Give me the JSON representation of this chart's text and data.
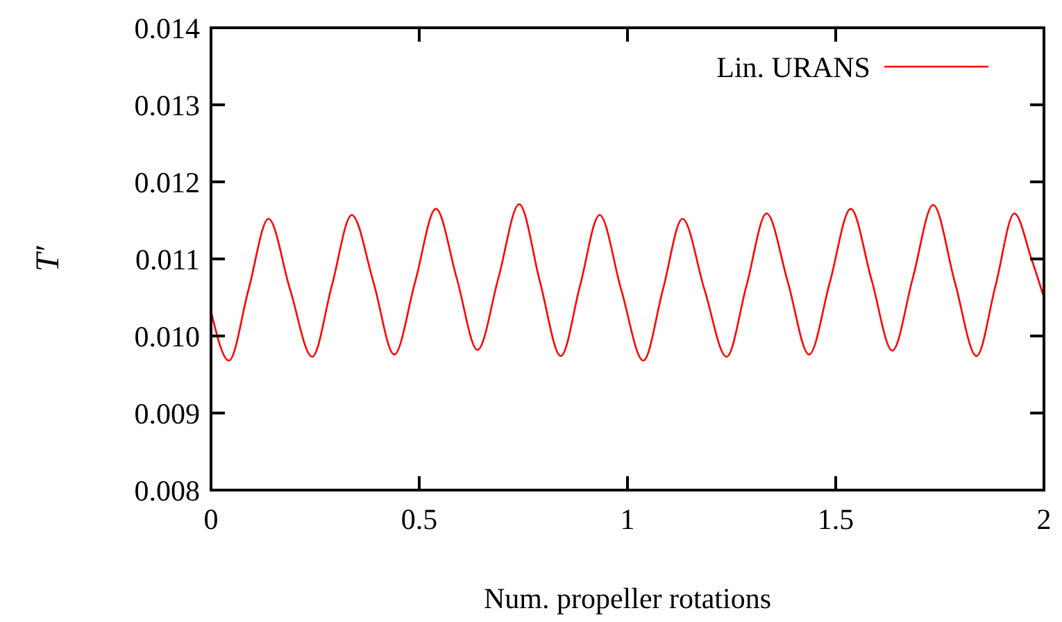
{
  "chart_data": {
    "type": "line",
    "xlabel": "Num. propeller rotations",
    "ylabel": "T′",
    "xlim": [
      0,
      2
    ],
    "xticks": [
      0,
      0.5,
      1,
      1.5,
      2
    ],
    "ylim": [
      0.008,
      0.014
    ],
    "yticks": [
      {
        "value": 0.008,
        "label": "0.008"
      },
      {
        "value": 0.009,
        "label": "0.009"
      },
      {
        "value": 0.01,
        "label": "0.010"
      },
      {
        "value": 0.011,
        "label": "0.011"
      },
      {
        "value": 0.012,
        "label": "0.012"
      },
      {
        "value": 0.013,
        "label": "0.013"
      },
      {
        "value": 0.014,
        "label": "0.014"
      }
    ],
    "grid": false,
    "legend": "top right",
    "marker": "none",
    "line_style": "solid",
    "series": [
      {
        "name": "Lin. URANS",
        "color": "#ff0000",
        "x": [
          0,
          0.043,
          0.09,
          0.138,
          0.19,
          0.243,
          0.29,
          0.338,
          0.39,
          0.44,
          0.49,
          0.54,
          0.59,
          0.64,
          0.69,
          0.74,
          0.79,
          0.84,
          0.886,
          0.933,
          0.985,
          1.038,
          1.085,
          1.132,
          1.185,
          1.238,
          1.286,
          1.334,
          1.385,
          1.436,
          1.486,
          1.536,
          1.586,
          1.636,
          1.685,
          1.734,
          1.786,
          1.838,
          1.884,
          1.929,
          1.97,
          2
        ],
        "values": [
          0.01032,
          0.00968,
          0.0106,
          0.01152,
          0.0106,
          0.00973,
          0.01065,
          0.01157,
          0.0107,
          0.00976,
          0.0107,
          0.01165,
          0.01075,
          0.00982,
          0.01075,
          0.01171,
          0.0107,
          0.00974,
          0.01065,
          0.01157,
          0.0106,
          0.00968,
          0.0106,
          0.01152,
          0.0106,
          0.00973,
          0.01066,
          0.01159,
          0.0107,
          0.00976,
          0.0107,
          0.01165,
          0.01073,
          0.00981,
          0.01075,
          0.0117,
          0.0107,
          0.00974,
          0.01066,
          0.01159,
          0.011,
          0.0105
        ]
      }
    ]
  }
}
